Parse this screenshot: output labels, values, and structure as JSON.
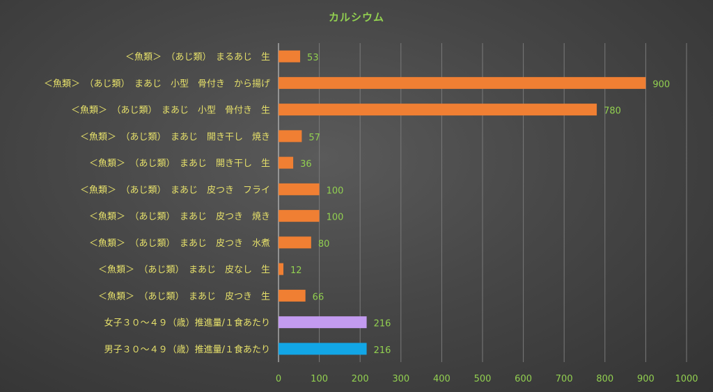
{
  "chart_data": {
    "type": "bar",
    "orientation": "horizontal",
    "title": "カルシウム",
    "categories": [
      "＜魚類＞　（あじ類）　まるあじ　生",
      "＜魚類＞　（あじ類）　まあじ　小型　骨付き　から揚げ",
      "＜魚類＞　（あじ類）　まあじ　小型　骨付き　生",
      "＜魚類＞　（あじ類）　まあじ　開き干し　焼き",
      "＜魚類＞　（あじ類）　まあじ　開き干し　生",
      "＜魚類＞　（あじ類）　まあじ　皮つき　フライ",
      "＜魚類＞　（あじ類）　まあじ　皮つき　焼き",
      "＜魚類＞　（あじ類）　まあじ　皮つき　水煮",
      "＜魚類＞　（あじ類）　まあじ　皮なし　生",
      "＜魚類＞　（あじ類）　まあじ　皮つき　生",
      "女子３０～４９（歳）推進量/１食あたり",
      "男子３０～４９（歳）推進量/１食あたり"
    ],
    "values": [
      53,
      900,
      780,
      57,
      36,
      100,
      100,
      80,
      12,
      66,
      216,
      216
    ],
    "bar_colors": [
      "#f07f33",
      "#f07f33",
      "#f07f33",
      "#f07f33",
      "#f07f33",
      "#f07f33",
      "#f07f33",
      "#f07f33",
      "#f07f33",
      "#f07f33",
      "#c39bf0",
      "#12a6e6"
    ],
    "xlim": [
      0,
      1000
    ],
    "ticks": [
      0,
      100,
      200,
      300,
      400,
      500,
      600,
      700,
      800,
      900,
      1000
    ],
    "grid": true,
    "colors": {
      "title": "#92d050",
      "category_label": "#e6e06a",
      "value_label": "#92d050",
      "tick_label": "#92d050",
      "gridline": "#7a7a7a"
    }
  }
}
